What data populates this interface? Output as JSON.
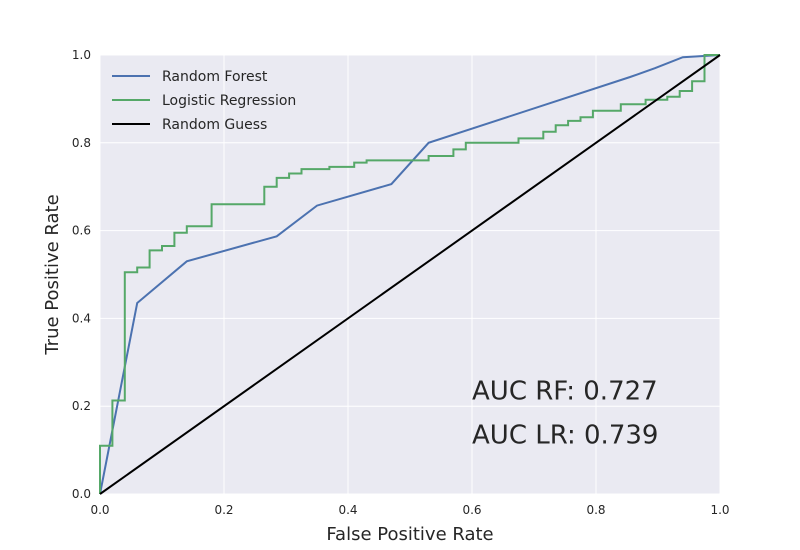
{
  "chart_data": {
    "type": "line",
    "title": "",
    "xlabel": "False Positive Rate",
    "ylabel": "True Positive Rate",
    "xlim": [
      0.0,
      1.0
    ],
    "ylim": [
      0.0,
      1.0
    ],
    "xticks": [
      "0.0",
      "0.2",
      "0.4",
      "0.6",
      "0.8",
      "1.0"
    ],
    "yticks": [
      "0.0",
      "0.2",
      "0.4",
      "0.6",
      "0.8",
      "1.0"
    ],
    "grid": true,
    "background": "#eaeaf2",
    "legend_position": "top-left",
    "series": [
      {
        "name": "Random Forest",
        "color": "#4c72b0",
        "step": false,
        "points": [
          [
            0.0,
            0.0
          ],
          [
            0.06,
            0.435
          ],
          [
            0.14,
            0.53
          ],
          [
            0.285,
            0.587
          ],
          [
            0.35,
            0.657
          ],
          [
            0.47,
            0.706
          ],
          [
            0.53,
            0.8
          ],
          [
            0.855,
            0.95
          ],
          [
            0.895,
            0.97
          ],
          [
            0.94,
            0.995
          ],
          [
            1.0,
            1.0
          ]
        ]
      },
      {
        "name": "Logistic Regression",
        "color": "#55a868",
        "step": true,
        "points": [
          [
            0.0,
            0.0
          ],
          [
            0.0,
            0.11
          ],
          [
            0.02,
            0.11
          ],
          [
            0.02,
            0.213
          ],
          [
            0.04,
            0.213
          ],
          [
            0.04,
            0.505
          ],
          [
            0.06,
            0.505
          ],
          [
            0.06,
            0.516
          ],
          [
            0.08,
            0.516
          ],
          [
            0.08,
            0.555
          ],
          [
            0.1,
            0.555
          ],
          [
            0.1,
            0.565
          ],
          [
            0.12,
            0.565
          ],
          [
            0.12,
            0.595
          ],
          [
            0.14,
            0.595
          ],
          [
            0.14,
            0.61
          ],
          [
            0.18,
            0.61
          ],
          [
            0.18,
            0.66
          ],
          [
            0.265,
            0.66
          ],
          [
            0.265,
            0.7
          ],
          [
            0.285,
            0.7
          ],
          [
            0.285,
            0.72
          ],
          [
            0.305,
            0.72
          ],
          [
            0.305,
            0.73
          ],
          [
            0.325,
            0.73
          ],
          [
            0.325,
            0.74
          ],
          [
            0.37,
            0.74
          ],
          [
            0.37,
            0.745
          ],
          [
            0.41,
            0.745
          ],
          [
            0.41,
            0.755
          ],
          [
            0.43,
            0.755
          ],
          [
            0.43,
            0.76
          ],
          [
            0.53,
            0.76
          ],
          [
            0.53,
            0.77
          ],
          [
            0.57,
            0.77
          ],
          [
            0.57,
            0.785
          ],
          [
            0.59,
            0.785
          ],
          [
            0.59,
            0.8
          ],
          [
            0.675,
            0.8
          ],
          [
            0.675,
            0.81
          ],
          [
            0.715,
            0.81
          ],
          [
            0.715,
            0.825
          ],
          [
            0.735,
            0.825
          ],
          [
            0.735,
            0.84
          ],
          [
            0.755,
            0.84
          ],
          [
            0.755,
            0.85
          ],
          [
            0.775,
            0.85
          ],
          [
            0.775,
            0.858
          ],
          [
            0.795,
            0.858
          ],
          [
            0.795,
            0.873
          ],
          [
            0.84,
            0.873
          ],
          [
            0.84,
            0.888
          ],
          [
            0.88,
            0.888
          ],
          [
            0.88,
            0.898
          ],
          [
            0.915,
            0.898
          ],
          [
            0.915,
            0.905
          ],
          [
            0.935,
            0.905
          ],
          [
            0.935,
            0.918
          ],
          [
            0.955,
            0.918
          ],
          [
            0.955,
            0.94
          ],
          [
            0.975,
            0.94
          ],
          [
            0.975,
            1.0
          ],
          [
            1.0,
            1.0
          ]
        ]
      },
      {
        "name": "Random Guess",
        "color": "#000000",
        "step": false,
        "points": [
          [
            0.0,
            0.0
          ],
          [
            1.0,
            1.0
          ]
        ]
      }
    ],
    "annotations": [
      {
        "text": "AUC RF: 0.727",
        "x": 0.6,
        "y": 0.215
      },
      {
        "text": "AUC LR: 0.739",
        "x": 0.6,
        "y": 0.115
      }
    ]
  }
}
